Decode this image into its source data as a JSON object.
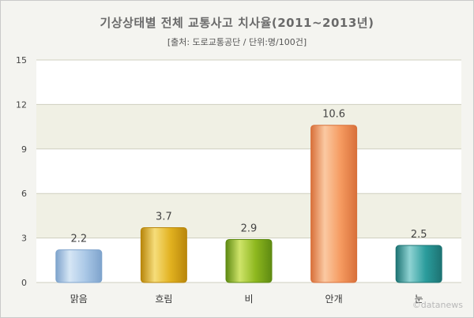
{
  "chart_data": {
    "type": "bar",
    "title": "기상상태별 전체 교통사고 치사율(2011~2013년)",
    "subtitle": "[출처: 도로교통공단 / 단위:명/100건]",
    "categories": [
      "맑음",
      "흐림",
      "비",
      "안개",
      "눈"
    ],
    "values": [
      2.2,
      3.7,
      2.9,
      10.6,
      2.5
    ],
    "value_labels": [
      "2.2",
      "3.7",
      "2.9",
      "10.6",
      "2.5"
    ],
    "yticks": [
      "0",
      "3",
      "6",
      "9",
      "12",
      "15"
    ],
    "ylim": [
      0,
      15
    ],
    "grid": true,
    "legend": "none",
    "xlabel": "",
    "ylabel": "",
    "bar_colors": [
      {
        "light": "#d6e6f5",
        "mid": "#a9c7e6",
        "dark": "#7ea3cc"
      },
      {
        "light": "#f6dd7a",
        "mid": "#e1b11f",
        "dark": "#b8860b"
      },
      {
        "light": "#cfe46a",
        "mid": "#8db71e",
        "dark": "#5e8a12"
      },
      {
        "light": "#fbc9a2",
        "mid": "#f59a60",
        "dark": "#d8703a"
      },
      {
        "light": "#8fd3d3",
        "mid": "#2a9c9c",
        "dark": "#1d7373"
      }
    ]
  },
  "watermark": "©datanews"
}
